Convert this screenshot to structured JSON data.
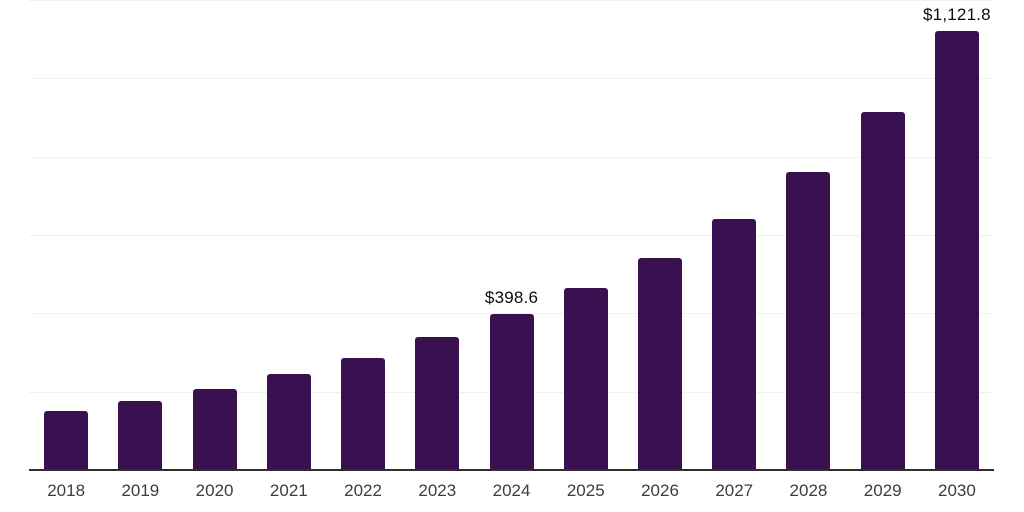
{
  "chart_data": {
    "type": "bar",
    "title": "",
    "xlabel": "",
    "ylabel": "",
    "categories": [
      "2018",
      "2019",
      "2020",
      "2021",
      "2022",
      "2023",
      "2024",
      "2025",
      "2026",
      "2027",
      "2028",
      "2029",
      "2030"
    ],
    "values": [
      150.0,
      177.3,
      207.2,
      244.5,
      286.3,
      340.2,
      398.6,
      465.0,
      542.0,
      642.0,
      760.0,
      915.0,
      1121.8
    ],
    "data_labels": {
      "2024": "$398.6",
      "2030": "$1,121.8"
    },
    "ylim": [
      0,
      1200
    ],
    "gridline_values": [
      200,
      400,
      600,
      800,
      1000,
      1200
    ],
    "grid": "horizontal",
    "y_tick_labels_visible": false,
    "legend_position": "none"
  },
  "colors": {
    "background": "#ffffff",
    "bar": "#3a1150",
    "axis_line": "#2e2e2e",
    "gridline": "#f0f0f0",
    "year_label": "#3d3d3d",
    "data_label": "#0d0d0d"
  }
}
